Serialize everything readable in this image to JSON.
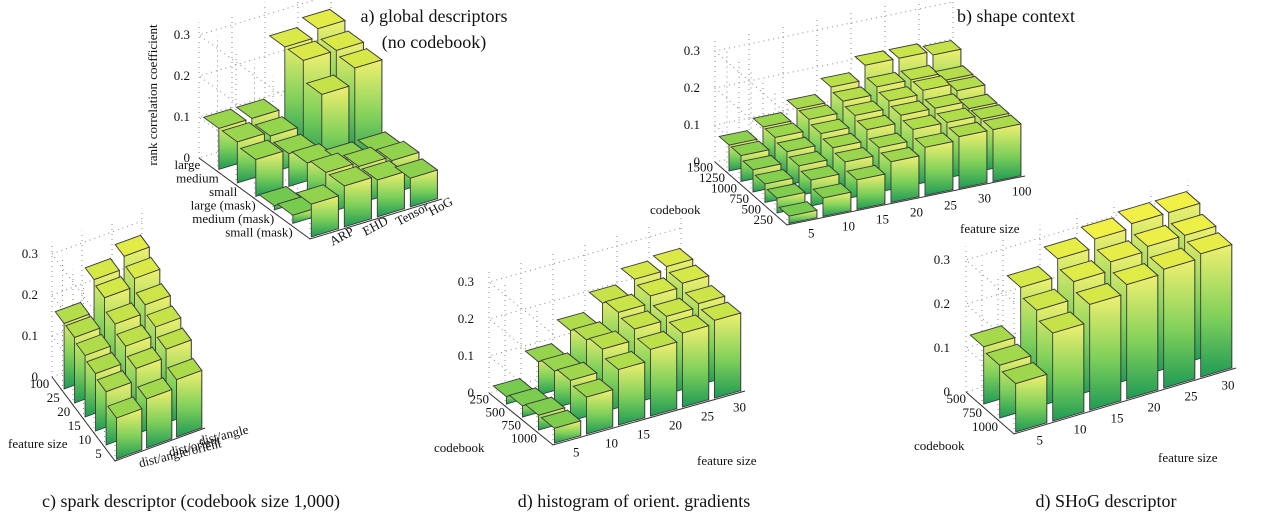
{
  "chart_data": [
    {
      "type": "bar3d",
      "title": "a) global descriptors",
      "subtitle": "(no codebook)",
      "zlabel": "rank correlation coefficient",
      "zticks": [
        "0",
        "0.1",
        "0.2",
        "0.3"
      ],
      "zlim": [
        0,
        0.3
      ],
      "grid": true,
      "rows": [
        "large",
        "medium",
        "small",
        "large (mask)",
        "medium (mask)",
        "small (mask)"
      ],
      "cols": [
        "ARP",
        "EHD",
        "Tensor",
        "HoG"
      ],
      "values": [
        [
          0.1,
          0.1,
          0.25,
          0.27
        ],
        [
          0.1,
          0.09,
          0.25,
          0.25
        ],
        [
          0.09,
          0.08,
          0.2,
          0.24
        ],
        [
          0.01,
          0.09,
          0.07,
          0.07
        ],
        [
          0.02,
          0.1,
          0.09,
          0.08
        ],
        [
          0.08,
          0.1,
          0.09,
          0.07
        ]
      ]
    },
    {
      "type": "bar3d",
      "title": "b) shape context",
      "zticks": [
        "0",
        "0.1",
        "0.2",
        "0.3"
      ],
      "zlim": [
        0,
        0.3
      ],
      "grid": true,
      "row_axis_label": "codebook",
      "col_axis_label": "feature size",
      "rows": [
        "1500",
        "1250",
        "1000",
        "750",
        "500",
        "250"
      ],
      "cols": [
        "5",
        "10",
        "15",
        "20",
        "25",
        "30",
        "100"
      ],
      "values": [
        [
          0.07,
          0.1,
          0.13,
          0.17,
          0.21,
          0.21,
          0.2
        ],
        [
          0.07,
          0.1,
          0.13,
          0.16,
          0.18,
          0.18,
          0.16
        ],
        [
          0.06,
          0.09,
          0.12,
          0.15,
          0.17,
          0.18,
          0.16
        ],
        [
          0.05,
          0.08,
          0.11,
          0.14,
          0.16,
          0.16,
          0.14
        ],
        [
          0.04,
          0.07,
          0.1,
          0.12,
          0.15,
          0.15,
          0.14
        ],
        [
          0.02,
          0.05,
          0.08,
          0.11,
          0.13,
          0.14,
          0.14
        ]
      ]
    },
    {
      "type": "bar3d",
      "title": "c) spark descriptor (codebook size 1,000)",
      "zticks": [
        "0",
        "0.1",
        "0.2",
        "0.3"
      ],
      "zlim": [
        0,
        0.3
      ],
      "grid": true,
      "row_axis_label": "feature size",
      "rows": [
        "100",
        "25",
        "20",
        "15",
        "10",
        "5"
      ],
      "cols": [
        "dist/angle/orient",
        "dist/orient",
        "dist/angle"
      ],
      "values": [
        [
          0.16,
          0.24,
          0.27
        ],
        [
          0.16,
          0.23,
          0.25
        ],
        [
          0.15,
          0.2,
          0.22
        ],
        [
          0.14,
          0.18,
          0.2
        ],
        [
          0.13,
          0.16,
          0.18
        ],
        [
          0.1,
          0.12,
          0.14
        ]
      ]
    },
    {
      "type": "bar3d",
      "title": "d) histogram of orient. gradients",
      "zticks": [
        "0",
        "0.1",
        "0.2",
        "0.3"
      ],
      "zlim": [
        0,
        0.3
      ],
      "grid": true,
      "row_axis_label": "codebook",
      "col_axis_label": "feature size",
      "rows": [
        "250",
        "500",
        "750",
        "1000"
      ],
      "cols": [
        "5",
        "10",
        "15",
        "20",
        "25",
        "30"
      ],
      "values": [
        [
          0.02,
          0.09,
          0.15,
          0.2,
          0.24,
          0.25
        ],
        [
          0.03,
          0.1,
          0.16,
          0.21,
          0.23,
          0.24
        ],
        [
          0.04,
          0.11,
          0.17,
          0.2,
          0.21,
          0.22
        ],
        [
          0.04,
          0.1,
          0.15,
          0.18,
          0.2,
          0.21
        ]
      ]
    },
    {
      "type": "bar3d",
      "title": "d) SHoG descriptor",
      "zticks": [
        "0",
        "0.1",
        "0.2",
        "0.3"
      ],
      "zlim": [
        0,
        0.3
      ],
      "grid": true,
      "row_axis_label": "codebook",
      "col_axis_label": "feature size",
      "rows": [
        "500",
        "750",
        "1000"
      ],
      "cols": [
        "5",
        "10",
        "15",
        "20",
        "25",
        "30"
      ],
      "values": [
        [
          0.13,
          0.24,
          0.28,
          0.3,
          0.31,
          0.31
        ],
        [
          0.12,
          0.22,
          0.26,
          0.28,
          0.29,
          0.29
        ],
        [
          0.11,
          0.2,
          0.24,
          0.26,
          0.27,
          0.28
        ]
      ]
    }
  ]
}
